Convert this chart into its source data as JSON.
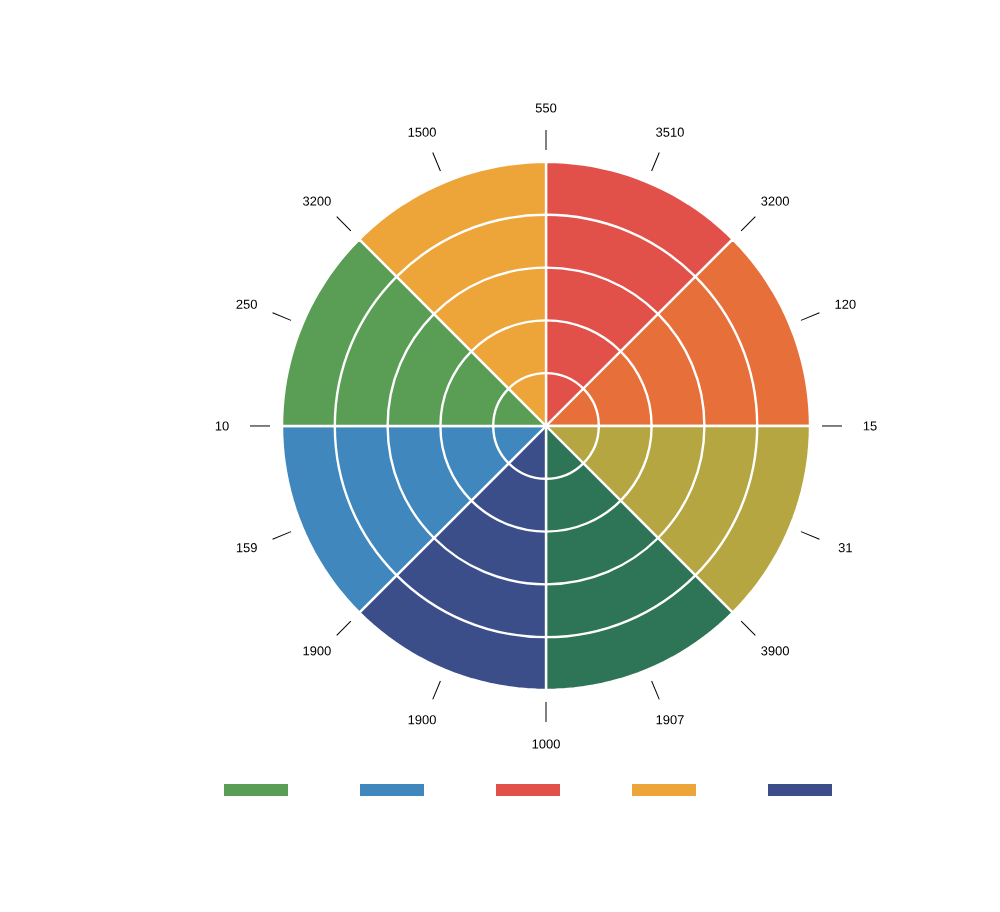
{
  "chart_data": {
    "type": "pie",
    "categories": [
      null,
      null,
      null,
      null,
      null,
      null,
      null,
      null
    ],
    "values": [
      12.5,
      12.5,
      12.5,
      12.5,
      12.5,
      12.5,
      12.5,
      12.5
    ],
    "colors": [
      "#e2504a",
      "#e7703a",
      "#b5a642",
      "#2e7456",
      "#3c4e8a",
      "#3f87bd",
      "#5a9e55",
      "#eda53a"
    ],
    "annotations": [
      "550",
      "3510",
      "3200",
      "120",
      "15",
      "31",
      "3900",
      "1907",
      "1000",
      "1900",
      "1900",
      "159",
      "10",
      "250",
      "3200",
      "1500"
    ]
  }
}
